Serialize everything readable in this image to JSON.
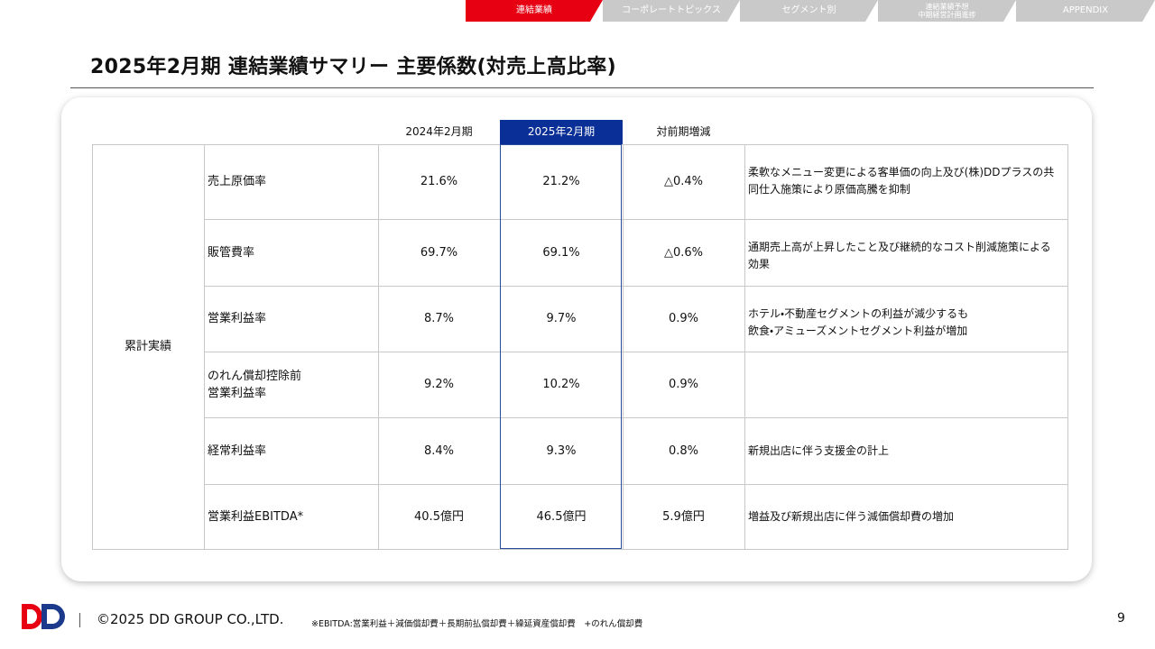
{
  "nav": {
    "tabs": [
      [
        "連結業績"
      ],
      [
        "コーポレートトピックス"
      ],
      [
        "セグメント別"
      ],
      [
        "連結業績予想",
        "中期経営計画進捗"
      ],
      [
        "APPENDIX"
      ]
    ],
    "active": 0
  },
  "header": {
    "title": "2025年2月期 連結業績サマリー 主要係数(対売上高比率)"
  },
  "table": {
    "columns": [
      "2024年2月期",
      "2025年2月期",
      "対前期増減"
    ],
    "highlight_column": 1,
    "group": "累計実績",
    "rows": [
      {
        "label": [
          "売上原価率"
        ],
        "values": [
          "21.6%",
          "21.2%",
          "△0.4%"
        ],
        "comment": [
          "柔軟なメニュー変更による客単価の向上及び(株)DDプラスの共",
          "同仕入施策により原価高騰を抑制"
        ]
      },
      {
        "label": [
          "販管費率"
        ],
        "values": [
          "69.7%",
          "69.1%",
          "△0.6%"
        ],
        "comment": [
          "通期売上高が上昇したこと及び継続的なコスト削減施策による",
          "効果"
        ]
      },
      {
        "label": [
          "営業利益率"
        ],
        "values": [
          "8.7%",
          "9.7%",
          "0.9%"
        ],
        "comment": [
          "ホテル・不動産セグメントの利益が減少するも",
          "飲食・アミューズメントセグメント利益が増加"
        ]
      },
      {
        "label": [
          "のれん償却控除前",
          "営業利益率"
        ],
        "values": [
          "9.2%",
          "10.2%",
          "0.9%"
        ],
        "comment": []
      },
      {
        "label": [
          "経常利益率"
        ],
        "values": [
          "8.4%",
          "9.3%",
          "0.8%"
        ],
        "comment": [
          "新規出店に伴う支援金の計上"
        ]
      },
      {
        "label": [
          "営業利益EBITDA*"
        ],
        "values": [
          "40.5億円",
          "46.5億円",
          "5.9億円"
        ],
        "comment": [
          "増益及び新規出店に伴う減価償却費の増加"
        ]
      }
    ]
  },
  "footer": {
    "logo": "DD",
    "copyright": "©2025 DD GROUP CO.,LTD.",
    "note": "※EBITDA:営業利益＋減価償却費＋長期前払償却費＋繰延資産償却費　+のれん償却費",
    "page": "9"
  }
}
